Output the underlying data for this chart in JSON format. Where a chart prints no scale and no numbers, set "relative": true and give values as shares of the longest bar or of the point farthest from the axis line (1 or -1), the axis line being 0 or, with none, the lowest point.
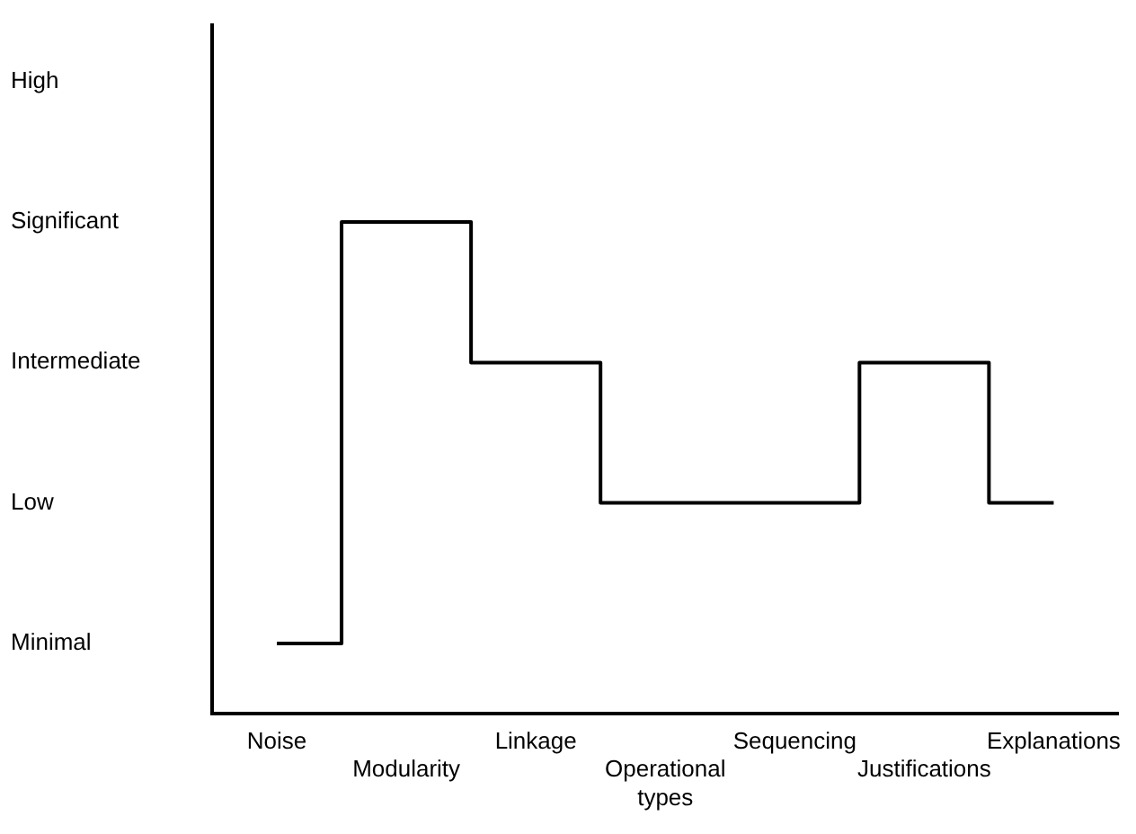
{
  "chart_data": {
    "type": "step",
    "categories": [
      "Noise",
      "Modularity",
      "Linkage",
      "Operational types",
      "Sequencing",
      "Justifications",
      "Explanations"
    ],
    "values": [
      0.143,
      1,
      0.714,
      0.429,
      0.429,
      0.714,
      0.429
    ],
    "relative": true,
    "color": "#000000",
    "annotations": [
      "Minimal",
      "Low",
      "Intermediate",
      "Significant",
      "High"
    ],
    "grid": false,
    "legend": false,
    "marker": "none",
    "line_style": "solid"
  }
}
